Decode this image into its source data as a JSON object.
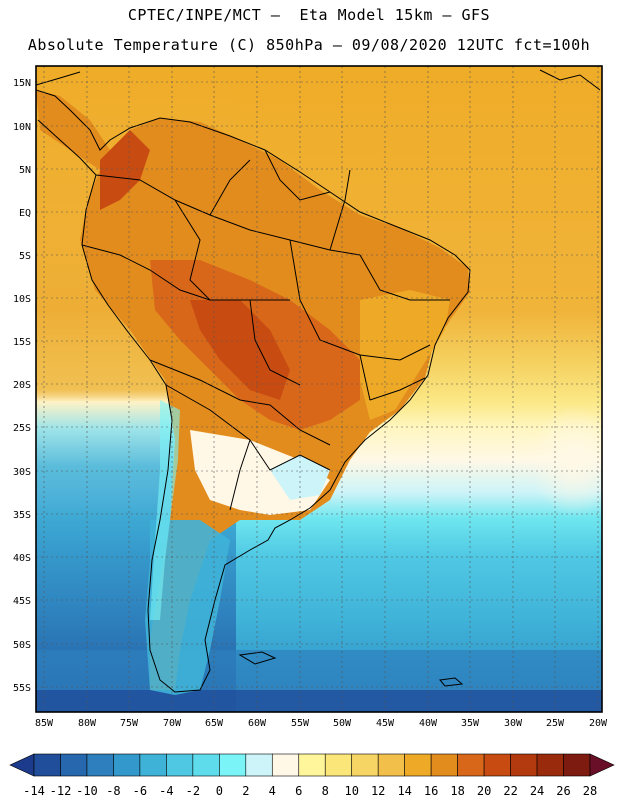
{
  "header": {
    "title_line1": "CPTEC/INPE/MCT —  Eta Model 15km — GFS",
    "title_line2": "Absolute Temperature (C) 850hPa — 09/08/2020 12UTC fct=100h"
  },
  "map": {
    "lat_labels": [
      "15N",
      "10N",
      "5N",
      "EQ",
      "5S",
      "10S",
      "15S",
      "20S",
      "25S",
      "30S",
      "35S",
      "40S",
      "45S",
      "50S",
      "55S"
    ],
    "lon_labels": [
      "85W",
      "80W",
      "75W",
      "70W",
      "65W",
      "60W",
      "55W",
      "50W",
      "45W",
      "40W",
      "35W",
      "30W",
      "25W",
      "20W"
    ]
  },
  "legend": {
    "colors": [
      "#1c3b8c",
      "#214e9b",
      "#2667ad",
      "#2d80bd",
      "#3399cc",
      "#3fb2d8",
      "#4fc8e4",
      "#5fdcec",
      "#7af4f6",
      "#cdf4f8",
      "#fff8e6",
      "#fff59a",
      "#fbe67a",
      "#f6d565",
      "#f2c04a",
      "#eeaa27",
      "#e38c1e",
      "#d9671a",
      "#c84c12",
      "#b33a0e",
      "#9a2a0c",
      "#7d1b10",
      "#6a0f28"
    ],
    "ticks": [
      "-14",
      "-12",
      "-10",
      "-8",
      "-6",
      "-4",
      "-2",
      "0",
      "2",
      "4",
      "6",
      "8",
      "10",
      "12",
      "14",
      "16",
      "18",
      "20",
      "22",
      "24",
      "26",
      "28"
    ]
  }
}
